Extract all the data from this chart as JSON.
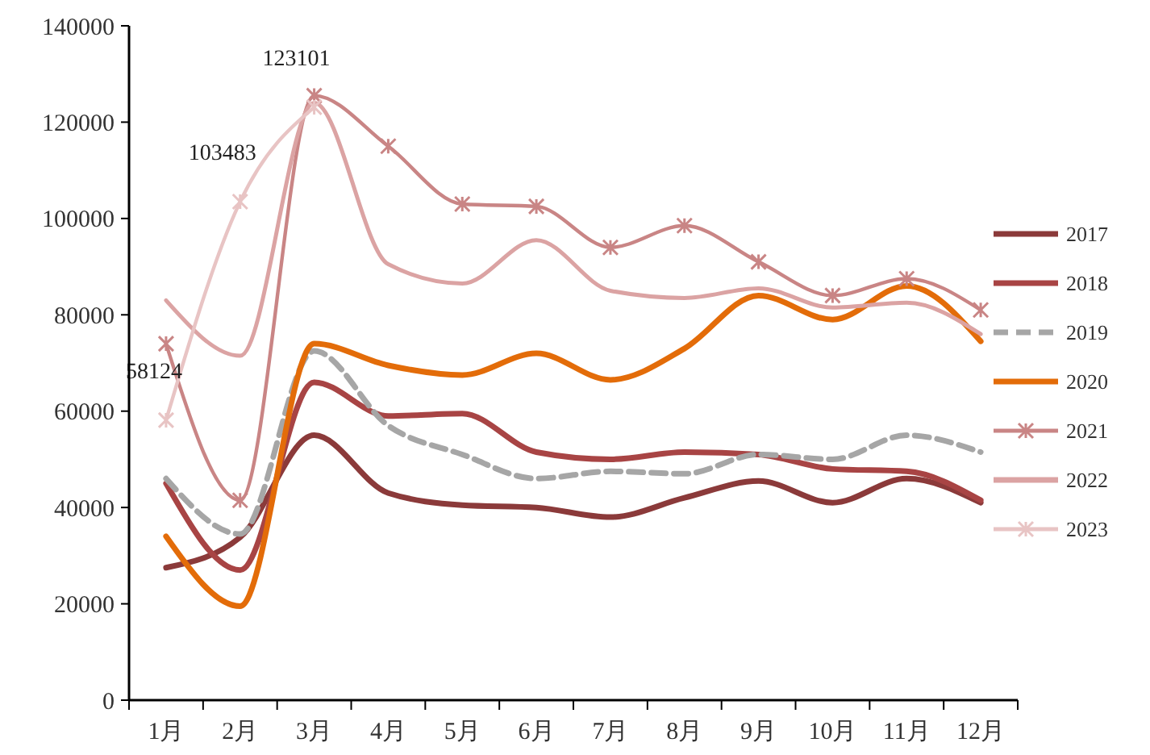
{
  "chart_data": {
    "type": "line",
    "categories": [
      "1月",
      "2月",
      "3月",
      "4月",
      "5月",
      "6月",
      "7月",
      "8月",
      "9月",
      "10月",
      "11月",
      "12月"
    ],
    "ylim": [
      0,
      140000
    ],
    "yticks": [
      0,
      20000,
      40000,
      60000,
      80000,
      100000,
      120000,
      140000
    ],
    "grid": false,
    "legend": "right",
    "series": [
      {
        "name": "2017",
        "color": "#8b3a3a",
        "values": [
          27500,
          33800,
          55000,
          43000,
          40500,
          40000,
          38000,
          42000,
          45500,
          41000,
          46000,
          41000
        ]
      },
      {
        "name": "2018",
        "color": "#a84444",
        "values": [
          45000,
          27000,
          66000,
          59000,
          59500,
          51500,
          50000,
          51500,
          51000,
          48000,
          47500,
          41500
        ]
      },
      {
        "name": "2019",
        "color": "#a6a6a6",
        "line_style": "dashed",
        "values": [
          46000,
          34500,
          72500,
          57000,
          51000,
          46000,
          47500,
          47000,
          51000,
          50000,
          55000,
          51500
        ]
      },
      {
        "name": "2020",
        "color": "#e36c09",
        "values": [
          34000,
          19500,
          74000,
          69500,
          67500,
          72000,
          66500,
          73000,
          84000,
          79000,
          86000,
          74500
        ]
      },
      {
        "name": "2021",
        "color": "#c98585",
        "marker": "cross",
        "values": [
          74000,
          41500,
          125500,
          115000,
          103000,
          102500,
          94000,
          98500,
          91000,
          84000,
          87500,
          81000
        ]
      },
      {
        "name": "2022",
        "color": "#dba3a3",
        "values": [
          83000,
          71500,
          124000,
          90500,
          86500,
          95500,
          85000,
          83500,
          85500,
          81500,
          82500,
          76000
        ]
      },
      {
        "name": "2023",
        "color": "#e8c4c4",
        "marker": "cross",
        "values": [
          58124,
          103483,
          123101,
          null,
          null,
          null,
          null,
          null,
          null,
          null,
          null,
          null
        ],
        "value_labels": [
          "58124",
          "103483",
          "123101",
          null,
          null,
          null,
          null,
          null,
          null,
          null,
          null,
          null
        ]
      }
    ]
  }
}
